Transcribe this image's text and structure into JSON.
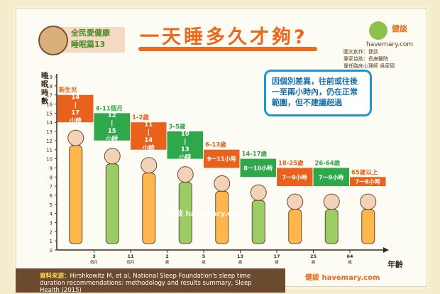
{
  "header": {
    "series_title": "全民愛健康",
    "subtitle": "睡眠篇13",
    "main_title": "一天睡多久才夠?",
    "logo_text": "健談",
    "logo_url": "havemary.com",
    "credits": [
      "圖文創作：健談",
      "專家協助：長庚醫院",
      "專任臨床心理師 吳家碩"
    ]
  },
  "note_text": "因個別差異，往前或往後一至兩小時內，仍在正常範圍，但不建議超過",
  "source": {
    "label": "資料來源：",
    "text": "Hirshkowitz M, et al, National Sleep Foundation's sleep time duration recommendations: methodology and results summary, Sleep Health (2015)"
  },
  "watermark": "健談 havemary.com",
  "footer_logo": "健談 havemary.com",
  "colors": {
    "orange": "#e8621e",
    "green": "#2ea84a",
    "teal": "#3aa57a",
    "note_border": "#1f95d2"
  },
  "chart_data": {
    "type": "bar",
    "ylabel": "睡眠時數",
    "xlabel": "年齡",
    "ylim": [
      0,
      20
    ],
    "yticks": [
      0,
      1,
      2,
      3,
      4,
      5,
      6,
      7,
      8,
      9,
      10,
      11,
      12,
      13,
      14,
      15,
      16,
      17,
      18,
      19
    ],
    "xticks": [
      {
        "label": "3",
        "sub": "個月"
      },
      {
        "label": "11",
        "sub": "個月"
      },
      {
        "label": "2",
        "sub": "歲"
      },
      {
        "label": "5",
        "sub": "歲"
      },
      {
        "label": "13",
        "sub": "歲"
      },
      {
        "label": "17",
        "sub": "歲"
      },
      {
        "label": "25",
        "sub": "歲"
      },
      {
        "label": "64",
        "sub": "歲"
      }
    ],
    "bars": [
      {
        "group": "新生兒",
        "range_label": [
          "14",
          "|",
          "17",
          "小時"
        ],
        "low": 14,
        "high": 17,
        "color": "#e8621e"
      },
      {
        "group": "4-11個月",
        "range_label": [
          "12",
          "|",
          "15",
          "小時"
        ],
        "low": 12,
        "high": 15,
        "color": "#2ea84a"
      },
      {
        "group": "1-2歲",
        "range_label": [
          "11",
          "|",
          "14",
          "小時"
        ],
        "low": 11,
        "high": 14,
        "color": "#e8621e"
      },
      {
        "group": "3-5歲",
        "range_label": [
          "10",
          "|",
          "13",
          "小時"
        ],
        "low": 10,
        "high": 13,
        "color": "#2ea84a"
      },
      {
        "group": "6-13歲",
        "range_label": [
          "9一11小時"
        ],
        "low": 9,
        "high": 11,
        "color": "#e8621e"
      },
      {
        "group": "14-17歲",
        "range_label": [
          "8一10小時"
        ],
        "low": 8,
        "high": 10,
        "color": "#2ea84a"
      },
      {
        "group": "18-25歲",
        "range_label": [
          "7一9小時"
        ],
        "low": 7,
        "high": 9,
        "color": "#e8621e"
      },
      {
        "group": "26-64歲",
        "range_label": [
          "7一9小時"
        ],
        "low": 7,
        "high": 9,
        "color": "#2ea84a"
      },
      {
        "group": "65歲以上",
        "range_label": [
          "7一8小時"
        ],
        "low": 7,
        "high": 8,
        "color": "#e8621e"
      }
    ]
  }
}
